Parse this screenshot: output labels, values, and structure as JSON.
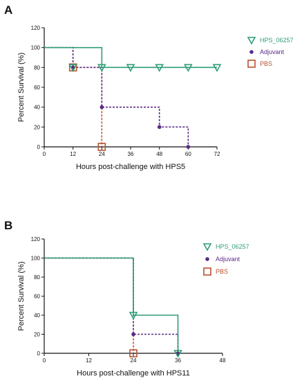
{
  "panels": [
    {
      "letter": "A"
    },
    {
      "letter": "B"
    }
  ],
  "colors": {
    "hps_06257": "#2e9e74",
    "adjuvant": "#5b2a86",
    "pbs": "#b8502e"
  },
  "chart_data": [
    {
      "type": "line",
      "step": true,
      "title": "",
      "xlabel": "Hours post-challenge with HPS5",
      "ylabel": "Percent Survival (%)",
      "xlim": [
        0,
        72
      ],
      "ylim": [
        0,
        120
      ],
      "xticks": [
        0,
        12,
        24,
        36,
        48,
        60,
        72
      ],
      "yticks": [
        0,
        20,
        40,
        60,
        80,
        100,
        120
      ],
      "grid": false,
      "legend_position": "top-right",
      "series": [
        {
          "name": "HPS_06257",
          "x": [
            0,
            24,
            72
          ],
          "y": [
            100,
            80,
            80
          ],
          "marker_x": [
            12,
            24,
            36,
            48,
            60,
            72
          ],
          "marker_y": [
            80,
            80,
            80,
            80,
            80,
            80
          ]
        },
        {
          "name": "Adjuvant",
          "x": [
            0,
            12,
            24,
            48,
            60
          ],
          "y": [
            100,
            80,
            40,
            20,
            0
          ],
          "marker_x": [
            12,
            24,
            48,
            60
          ],
          "marker_y": [
            80,
            40,
            20,
            0
          ]
        },
        {
          "name": "PBS",
          "x": [
            0,
            12,
            24
          ],
          "y": [
            100,
            80,
            0
          ],
          "marker_x": [
            12,
            24
          ],
          "marker_y": [
            80,
            0
          ]
        }
      ]
    },
    {
      "type": "line",
      "step": true,
      "title": "",
      "xlabel": "Hours post-challenge with HPS11",
      "ylabel": "Percent Survival (%)",
      "xlim": [
        0,
        48
      ],
      "ylim": [
        0,
        120
      ],
      "xticks": [
        0,
        12,
        24,
        36,
        48
      ],
      "yticks": [
        0,
        20,
        40,
        60,
        80,
        100,
        120
      ],
      "grid": false,
      "legend_position": "top-right",
      "series": [
        {
          "name": "HPS_06257",
          "x": [
            0,
            24,
            36
          ],
          "y": [
            100,
            40,
            0
          ],
          "marker_x": [
            24,
            36
          ],
          "marker_y": [
            40,
            0
          ]
        },
        {
          "name": "Adjuvant",
          "x": [
            0,
            24,
            36
          ],
          "y": [
            100,
            20,
            0
          ],
          "marker_x": [
            24,
            36
          ],
          "marker_y": [
            20,
            0
          ]
        },
        {
          "name": "PBS",
          "x": [
            0,
            24
          ],
          "y": [
            100,
            0
          ],
          "marker_x": [
            24
          ],
          "marker_y": [
            0
          ]
        }
      ]
    }
  ]
}
